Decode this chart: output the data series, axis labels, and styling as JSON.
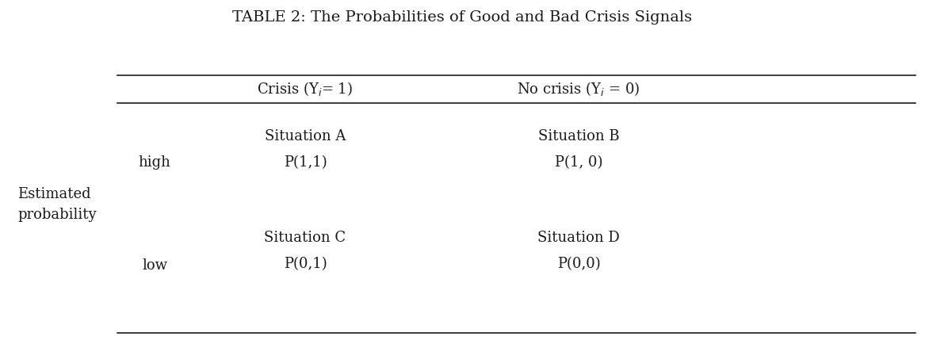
{
  "title": "TABLE 2: The Probabilities of Good and Bad Crisis Signals",
  "title_fontsize": 14,
  "col1_header_pre": "Crisis (Y",
  "col1_header_sub": "i",
  "col1_header_post": "= 1)",
  "col2_header_pre": "No crisis (Y",
  "col2_header_sub": "i",
  "col2_header_post": " = 0)",
  "row_label_outer": "Estimated\nprobability",
  "row_label_high": "high",
  "row_label_low": "low",
  "cell_A_line1": "Situation A",
  "cell_A_line2": "P(1,1)",
  "cell_B_line1": "Situation B",
  "cell_B_line2": "P(1, 0)",
  "cell_C_line1": "Situation C",
  "cell_C_line2": "P(0,1)",
  "cell_D_line1": "Situation D",
  "cell_D_line2": "P(0,0)",
  "bg_color": "#ffffff",
  "text_color": "#1a1a1a",
  "line_color": "#1a1a1a",
  "body_fontsize": 13,
  "header_fontsize": 13,
  "label_fontsize": 13,
  "title_color": "#1a1a1a"
}
